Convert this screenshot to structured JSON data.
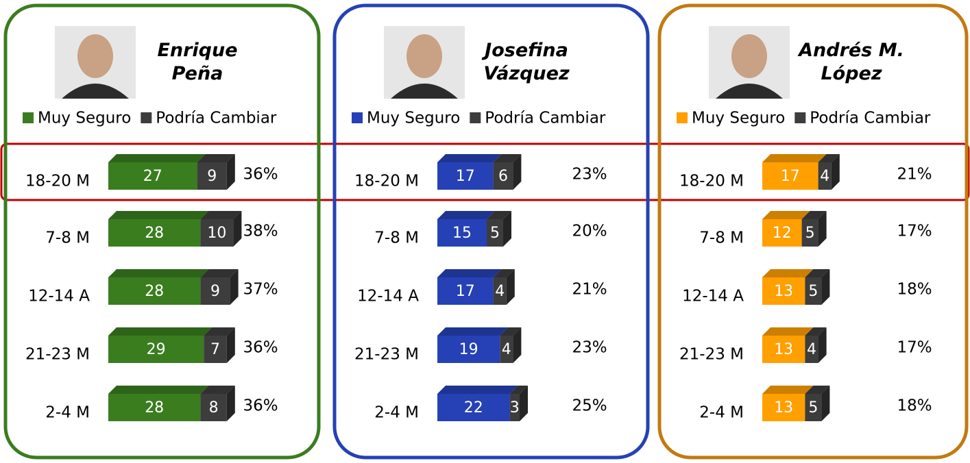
{
  "chart_data": [
    {
      "type": "bar",
      "stacked": true,
      "orientation": "horizontal",
      "title": [
        "Enrique",
        "Peña"
      ],
      "categories": [
        "18-20 M",
        "7-8 M",
        "12-14 A",
        "21-23 M",
        "2-4 M"
      ],
      "series": [
        {
          "name": "Muy Seguro",
          "color": "#3a7d1f",
          "values": [
            27,
            28,
            28,
            29,
            28
          ]
        },
        {
          "name": "Podría Cambiar",
          "color": "#3d3d3d",
          "values": [
            9,
            10,
            9,
            7,
            8
          ]
        }
      ],
      "totals": {
        "values": [
          36,
          38,
          37,
          36,
          36
        ],
        "value_labels": [
          "36%",
          "38%",
          "37%",
          "36%",
          "36%"
        ]
      }
    },
    {
      "type": "bar",
      "stacked": true,
      "orientation": "horizontal",
      "title": [
        "Josefina",
        "Vázquez"
      ],
      "categories": [
        "18-20 M",
        "7-8 M",
        "12-14 A",
        "21-23 M",
        "2-4 M"
      ],
      "series": [
        {
          "name": "Muy Seguro",
          "color": "#2541b5",
          "values": [
            17,
            15,
            17,
            19,
            22
          ]
        },
        {
          "name": "Podría Cambiar",
          "color": "#3d3d3d",
          "values": [
            6,
            5,
            4,
            4,
            3
          ]
        }
      ],
      "totals": {
        "values": [
          23,
          20,
          21,
          23,
          25
        ],
        "value_labels": [
          "23%",
          "20%",
          "21%",
          "23%",
          "25%"
        ]
      }
    },
    {
      "type": "bar",
      "stacked": true,
      "orientation": "horizontal",
      "title": [
        "Andrés M.",
        "López"
      ],
      "categories": [
        "18-20 M",
        "7-8 M",
        "12-14 A",
        "21-23 M",
        "2-4 M"
      ],
      "series": [
        {
          "name": "Muy Seguro",
          "color": "#ff9f00",
          "values": [
            17,
            12,
            13,
            13,
            13
          ]
        },
        {
          "name": "Podría Cambiar",
          "color": "#3d3d3d",
          "values": [
            4,
            5,
            5,
            4,
            5
          ]
        }
      ],
      "totals": {
        "values": [
          21,
          17,
          18,
          17,
          18
        ],
        "value_labels": [
          "21%",
          "17%",
          "18%",
          "17%",
          "18%"
        ]
      }
    }
  ]
}
